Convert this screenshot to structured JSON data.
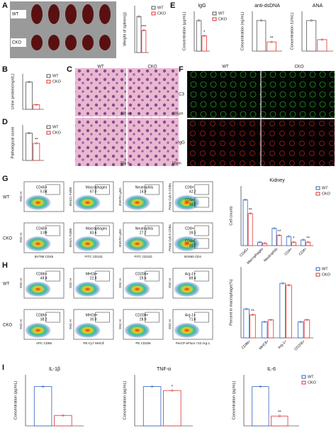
{
  "panel_letters": [
    "A",
    "B",
    "C",
    "D",
    "E",
    "F",
    "G",
    "H",
    "I"
  ],
  "spleen_rows": [
    "WT",
    "CKO"
  ],
  "histology": {
    "columns": [
      "WT",
      "CKO"
    ],
    "scale_bars": [
      "100μm",
      "100μm",
      "50μm",
      "50μm"
    ]
  },
  "staining": {
    "columns": [
      "WT",
      "CKO"
    ],
    "rows": [
      "C3",
      "IgG"
    ]
  },
  "flow_G": {
    "rows": [
      "WT",
      "CKO"
    ],
    "x_axes": [
      "BV785 CD45",
      "FITC CD11b",
      "FITC CD11b",
      "BV650 CD4"
    ],
    "y_axes": [
      "SSC-H",
      "BV421 F4/80",
      "BV570 Ly6G",
      "Percp Cy5.5 CD8a"
    ],
    "plots": [
      [
        [
          {
            "gate": "CD45+",
            "value": "5.04"
          }
        ],
        [
          {
            "gate": "Macrophages",
            "value": "67.0"
          }
        ],
        [
          {
            "gate": "Neutrophils",
            "value": "14.8"
          }
        ],
        [
          {
            "gate": "CD8+",
            "value": "42.2"
          },
          {
            "gate": "CD4+",
            "value": "30.2"
          }
        ]
      ],
      [
        [
          {
            "gate": "CD45+",
            "value": "3.99"
          }
        ],
        [
          {
            "gate": "Macrophages",
            "value": "83.6"
          }
        ],
        [
          {
            "gate": "Neutrophils",
            "value": "27.2"
          }
        ],
        [
          {
            "gate": "CD8+",
            "value": "39.3"
          },
          {
            "gate": "CD4+",
            "value": "30.7"
          }
        ]
      ]
    ]
  },
  "flow_H": {
    "rows": [
      "WT",
      "CKO"
    ],
    "x_axes": [
      "APC CD86",
      "PE-Cy7 MHCⅡ",
      "PE CD206",
      "PerCP-eFluor 710 Arg-1"
    ],
    "y_axes": [
      "SSC-H",
      "SSC-H",
      "SSC-H",
      "SSC-H"
    ],
    "plots": [
      [
        [
          {
            "gate": "CD86+",
            "value": "49.4"
          }
        ],
        [
          {
            "gate": "MHCⅡ+",
            "value": "22.9"
          }
        ],
        [
          {
            "gate": "CD206+",
            "value": "29.6"
          }
        ],
        [
          {
            "gate": "Arg-1+",
            "value": "89.4"
          }
        ]
      ],
      [
        [
          {
            "gate": "CD86+",
            "value": "38.2"
          }
        ],
        [
          {
            "gate": "MHCⅡ+",
            "value": "30.0"
          }
        ],
        [
          {
            "gate": "CD206+",
            "value": "28.9"
          }
        ],
        [
          {
            "gate": "Arg-1+",
            "value": "71.6"
          }
        ]
      ]
    ]
  },
  "charts": [
    {
      "type": "bar",
      "ylabel": "Weight of spleen(g)",
      "legend": true,
      "series": [
        {
          "name": "WT",
          "color": "#555555",
          "values": [
            0.13
          ]
        },
        {
          "name": "CKO",
          "color": "#e03030",
          "values": [
            0.08
          ]
        }
      ],
      "annotations": [
        "***"
      ]
    },
    {
      "type": "bar",
      "ylabel": "Urine protein(mg/dL)",
      "legend": true,
      "series": [
        {
          "name": "WT",
          "color": "#555555",
          "values": [
            3
          ]
        },
        {
          "name": "CKO",
          "color": "#e03030",
          "values": [
            0.5
          ]
        }
      ],
      "annotations": [
        null
      ]
    },
    {
      "type": "bar",
      "ylabel": "Pathological score",
      "legend": true,
      "series": [
        {
          "name": "WT",
          "color": "#555555",
          "values": [
            4
          ]
        },
        {
          "name": "CKO",
          "color": "#e03030",
          "values": [
            2.5
          ]
        }
      ],
      "annotations": [
        "**"
      ]
    },
    {
      "type": "bar",
      "title": "IgG",
      "ylabel": "Concentration (μg/mL)",
      "legend": true,
      "series": [
        {
          "name": "WT",
          "color": "#555555",
          "values": [
            6
          ]
        },
        {
          "name": "CKO",
          "color": "#e03030",
          "values": [
            3
          ]
        }
      ],
      "annotations": [
        "*"
      ]
    },
    {
      "type": "bar",
      "title": "anti-dsDNA",
      "ylabel": "Concentration (ng/mL)",
      "legend": false,
      "series": [
        {
          "name": "WT",
          "color": "#555555",
          "values": [
            5
          ]
        },
        {
          "name": "CKO",
          "color": "#e03030",
          "values": [
            1.5
          ]
        }
      ],
      "annotations": [
        "**"
      ]
    },
    {
      "type": "bar",
      "title": "ANA",
      "ylabel": "Concentration (U/mL)",
      "legend": false,
      "series": [
        {
          "name": "WT",
          "color": "#555555",
          "values": [
            4
          ]
        },
        {
          "name": "CKO",
          "color": "#e03030",
          "values": [
            1.5
          ]
        }
      ],
      "annotations": [
        null
      ]
    },
    {
      "type": "bar",
      "title": "Kidney",
      "ylabel": "Cell counts",
      "legend": true,
      "categories": [
        "CD45+",
        "Macrophages",
        "Neutrophils",
        "CD4+",
        "CD8+"
      ],
      "series": [
        {
          "name": "WT",
          "color": "#3060c0",
          "values": [
            4000,
            300,
            1500,
            800,
            500
          ]
        },
        {
          "name": "CKO",
          "color": "#e03030",
          "values": [
            2800,
            200,
            900,
            300,
            300
          ]
        }
      ],
      "annotations": [
        "**",
        null,
        "**",
        "*",
        "**"
      ]
    },
    {
      "type": "bar",
      "ylabel": "Percent in macrophage(%)",
      "legend": true,
      "categories": [
        "CD86+",
        "MHCⅡ+",
        "Arg-1+",
        "CD206+"
      ],
      "series": [
        {
          "name": "WT",
          "color": "#3060c0",
          "values": [
            45,
            25,
            85,
            25
          ]
        },
        {
          "name": "CKO",
          "color": "#e03030",
          "values": [
            36,
            28,
            82,
            28
          ]
        }
      ],
      "annotations": [
        "**",
        null,
        null,
        null
      ]
    },
    {
      "type": "bar",
      "title": "IL-1β",
      "ylabel": "Concentration (pg/mL)",
      "legend": false,
      "series": [
        {
          "name": "WT",
          "color": "#3060c0",
          "values": [
            15
          ]
        },
        {
          "name": "CKO",
          "color": "#e03030",
          "values": [
            4
          ]
        }
      ],
      "annotations": [
        null
      ]
    },
    {
      "type": "bar",
      "title": "TNF-α",
      "ylabel": "Concentration (pg/mL)",
      "legend": false,
      "series": [
        {
          "name": "WT",
          "color": "#3060c0",
          "values": [
            50
          ]
        },
        {
          "name": "CKO",
          "color": "#e03030",
          "values": [
            45
          ]
        }
      ],
      "annotations": [
        "*"
      ]
    },
    {
      "type": "bar",
      "title": "IL-6",
      "ylabel": "Concentration (pg/mL)",
      "legend": true,
      "series": [
        {
          "name": "WT",
          "color": "#3060c0",
          "values": [
            20
          ]
        },
        {
          "name": "CKO",
          "color": "#e03030",
          "values": [
            5
          ]
        }
      ],
      "annotations": [
        "**"
      ]
    }
  ]
}
